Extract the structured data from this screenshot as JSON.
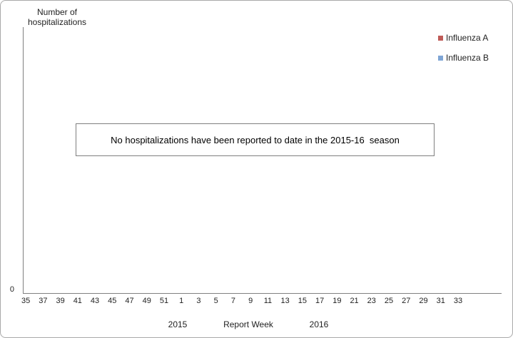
{
  "chart_data": {
    "type": "bar",
    "title": "",
    "y_axis_title": "Number of\nhospitalizations",
    "x_axis_title": "Report Week",
    "x_tick_labels": [
      "35",
      "37",
      "39",
      "41",
      "43",
      "45",
      "47",
      "49",
      "51",
      "1",
      "3",
      "5",
      "7",
      "9",
      "11",
      "13",
      "15",
      "17",
      "19",
      "21",
      "23",
      "25",
      "27",
      "29",
      "31",
      "33"
    ],
    "x_axis_year_labels": [
      "2015",
      "2016"
    ],
    "y_tick_labels": [
      "0"
    ],
    "ylim": [
      0,
      null
    ],
    "grid": false,
    "legend_position": "top-right",
    "axis_color": "#808080",
    "series": [
      {
        "name": "Influenza A",
        "color": "#BF5B57",
        "values": []
      },
      {
        "name": "Influenza B",
        "color": "#7FA5D5",
        "values": []
      }
    ],
    "annotation": "No hospitalizations have been reported to date in the 2015-16  season"
  }
}
